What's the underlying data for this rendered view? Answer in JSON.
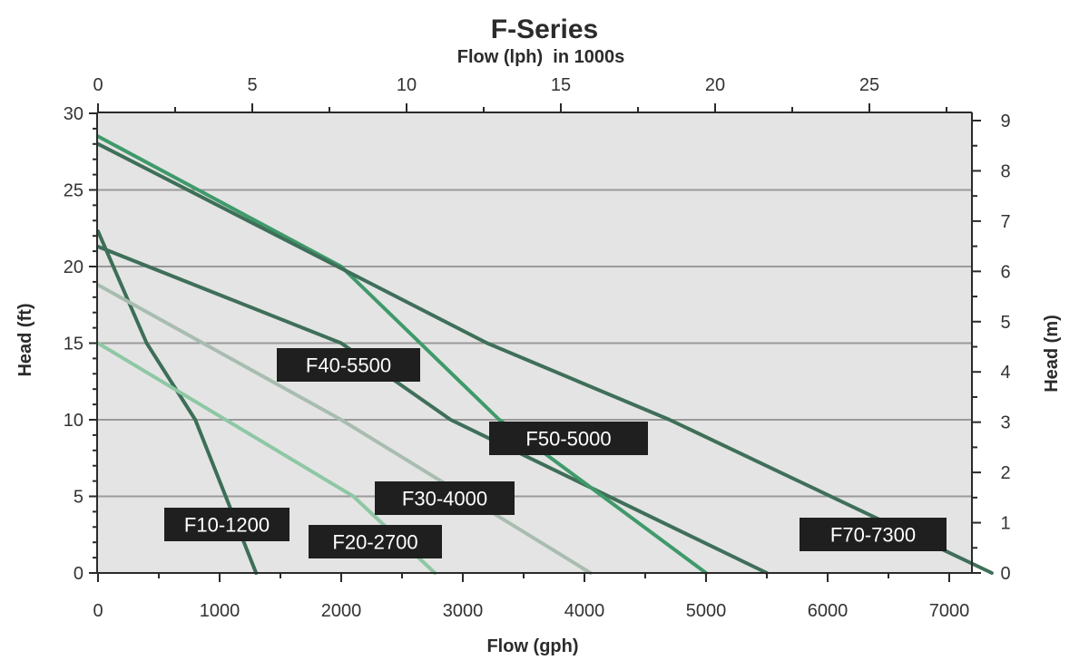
{
  "chart_data": {
    "type": "line",
    "title": "F-Series",
    "subtitle": "Flow (lph)  in 1000s",
    "xlabel": "Flow (gph)",
    "ylabel": "Head (ft)",
    "y2label": "Head (m)",
    "xlim": [
      0,
      7500
    ],
    "ylim": [
      0,
      30
    ],
    "x_ticks": [
      "0",
      "1000",
      "2000",
      "3000",
      "4000",
      "5000",
      "6000",
      "7000"
    ],
    "x_tick_values": [
      0,
      1000,
      2000,
      3000,
      4000,
      5000,
      6000,
      7000
    ],
    "x2_ticks": [
      "0",
      "5",
      "10",
      "15",
      "20",
      "25"
    ],
    "x2_tick_values": [
      0,
      5,
      10,
      15,
      20,
      25
    ],
    "y_ticks": [
      "0",
      "5",
      "10",
      "15",
      "20",
      "25",
      "30"
    ],
    "y_tick_values": [
      0,
      5,
      10,
      15,
      20,
      25,
      30
    ],
    "y2_ticks": [
      "0",
      "1",
      "2",
      "3",
      "4",
      "5",
      "6",
      "7",
      "8",
      "9"
    ],
    "y2_tick_values": [
      0,
      1,
      2,
      3,
      4,
      5,
      6,
      7,
      8,
      9
    ],
    "grid": true,
    "series": [
      {
        "name": "F10-1200",
        "color": "#3d6e58",
        "x": [
          0,
          400,
          800,
          1300
        ],
        "y": [
          22.3,
          15,
          10,
          0
        ]
      },
      {
        "name": "F20-2700",
        "color": "#8fc7a4",
        "x": [
          0,
          2100,
          2770
        ],
        "y": [
          15,
          5,
          0
        ]
      },
      {
        "name": "F30-4000",
        "color": "#a8bdb0",
        "x": [
          0,
          2000,
          4050
        ],
        "y": [
          18.8,
          10,
          0
        ]
      },
      {
        "name": "F40-5500",
        "color": "#3f6f59",
        "x": [
          0,
          2000,
          2900,
          5500
        ],
        "y": [
          21.3,
          15,
          10,
          0
        ]
      },
      {
        "name": "F50-5000",
        "color": "#3f9a6a",
        "x": [
          0,
          2000,
          3300,
          5000
        ],
        "y": [
          28.5,
          20,
          10,
          0
        ]
      },
      {
        "name": "F70-7300",
        "color": "#3f6f59",
        "x": [
          0,
          3200,
          4700,
          7350
        ],
        "y": [
          28,
          15,
          10,
          0
        ]
      }
    ]
  }
}
